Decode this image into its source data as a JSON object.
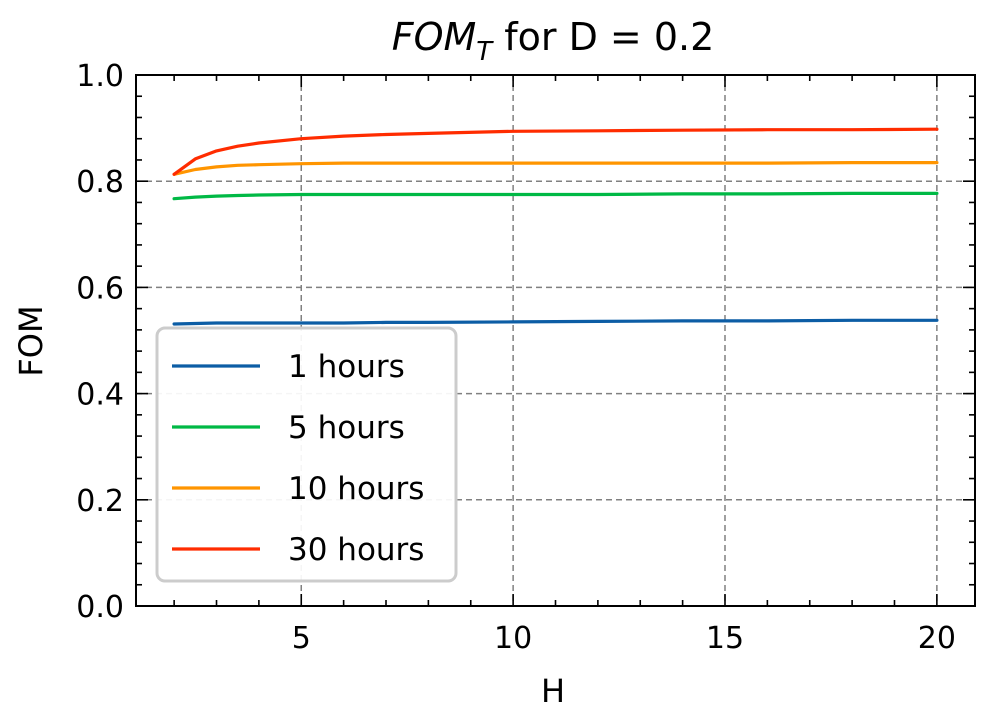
{
  "chart_data": {
    "type": "line",
    "title_prefix": "FOM",
    "title_sub": "T",
    "title_suffix": " for D = 0.2",
    "xlabel": "H",
    "ylabel": "FOM",
    "xlim": [
      1.1,
      20.9
    ],
    "ylim": [
      0.0,
      1.0
    ],
    "xticks": [
      5,
      10,
      15,
      20
    ],
    "yticks": [
      0.0,
      0.2,
      0.4,
      0.6,
      0.8,
      1.0
    ],
    "xtick_labels": [
      "5",
      "10",
      "15",
      "20"
    ],
    "ytick_labels": [
      "0.0",
      "0.2",
      "0.4",
      "0.6",
      "0.8",
      "1.0"
    ],
    "grid": true,
    "legend_position": "lower-left",
    "x": [
      2,
      2.5,
      3,
      3.5,
      4,
      5,
      6,
      7,
      8,
      10,
      12,
      14,
      16,
      18,
      20
    ],
    "series": [
      {
        "name": "1 hours",
        "color": "#0C5DA5",
        "values": [
          0.531,
          0.532,
          0.533,
          0.533,
          0.533,
          0.533,
          0.533,
          0.534,
          0.534,
          0.535,
          0.536,
          0.537,
          0.537,
          0.538,
          0.538
        ]
      },
      {
        "name": "5 hours",
        "color": "#00B945",
        "values": [
          0.767,
          0.77,
          0.772,
          0.773,
          0.774,
          0.775,
          0.775,
          0.775,
          0.775,
          0.775,
          0.775,
          0.776,
          0.776,
          0.777,
          0.777
        ]
      },
      {
        "name": "10 hours",
        "color": "#FF9500",
        "values": [
          0.813,
          0.822,
          0.827,
          0.83,
          0.831,
          0.833,
          0.834,
          0.834,
          0.834,
          0.834,
          0.834,
          0.834,
          0.834,
          0.835,
          0.835
        ]
      },
      {
        "name": "30 hours",
        "color": "#FF2C00",
        "values": [
          0.813,
          0.842,
          0.857,
          0.866,
          0.872,
          0.88,
          0.885,
          0.888,
          0.89,
          0.894,
          0.895,
          0.896,
          0.897,
          0.897,
          0.898
        ]
      }
    ]
  }
}
